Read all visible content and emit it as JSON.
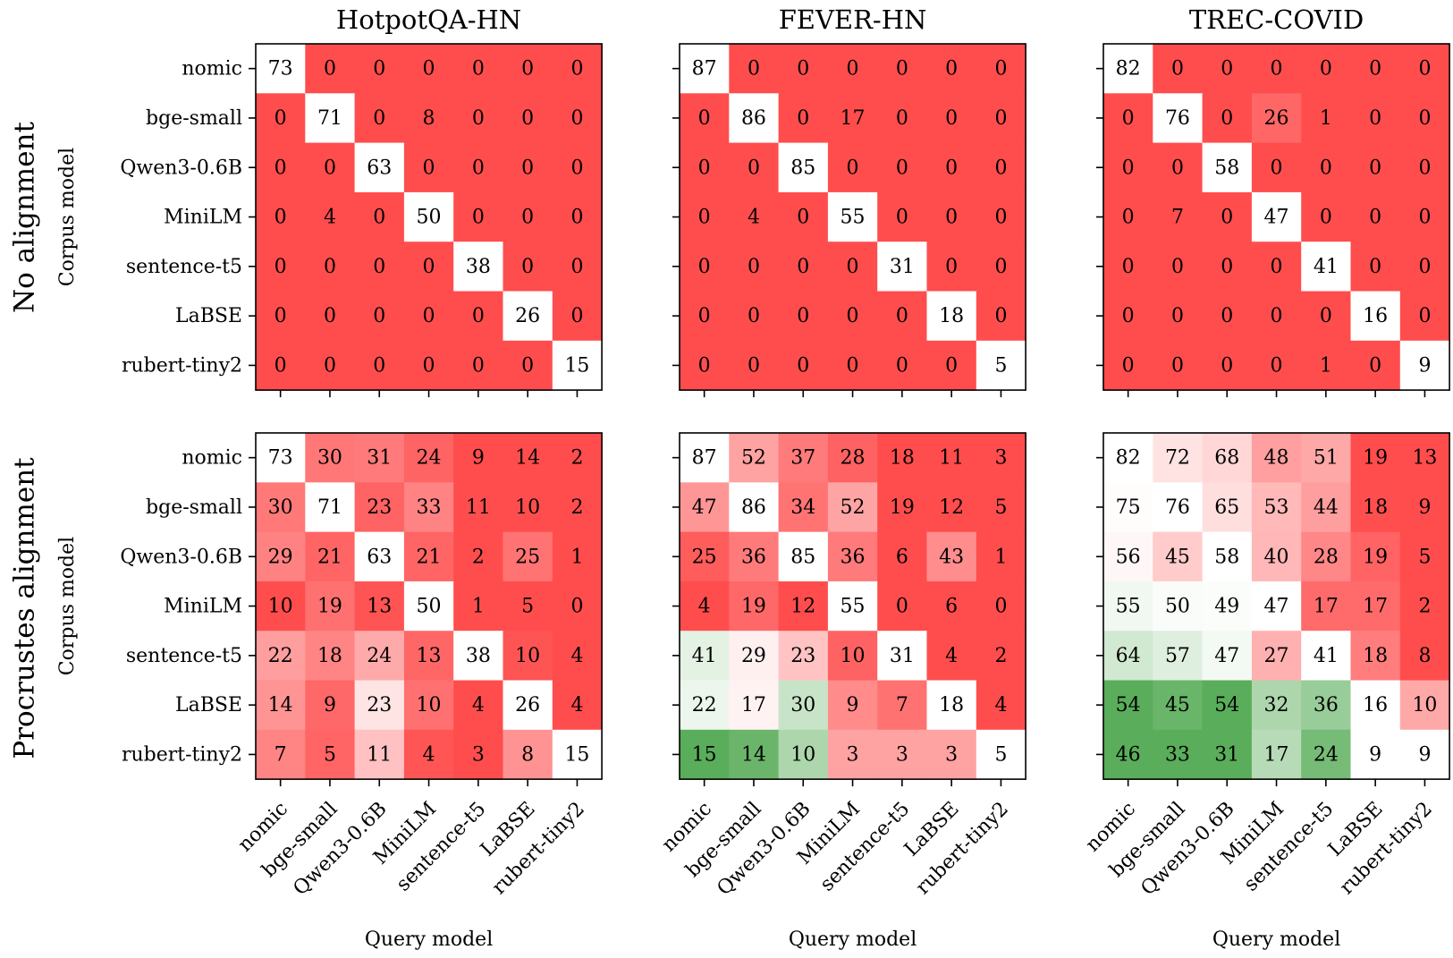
{
  "chart_data": {
    "type": "heatmap",
    "row_titles": [
      "No alignment",
      "Procrustes alignment"
    ],
    "column_titles": [
      "HotpotQA-HN",
      "FEVER-HN",
      "TREC-COVID"
    ],
    "xlabel": "Query model",
    "ylabel": "Corpus model",
    "models": [
      "nomic",
      "bge-small",
      "Qwen3-0.6B",
      "MiniLM",
      "sentence-t5",
      "LaBSE",
      "rubert-tiny2"
    ],
    "colors": {
      "low": "#ff4d4d",
      "neutral": "#ffffff",
      "high": "#5aad5a"
    },
    "panels": [
      {
        "row": 0,
        "col": 0,
        "title": "HotpotQA-HN",
        "matrix": [
          [
            73,
            0,
            0,
            0,
            0,
            0,
            0
          ],
          [
            0,
            71,
            0,
            8,
            0,
            0,
            0
          ],
          [
            0,
            0,
            63,
            0,
            0,
            0,
            0
          ],
          [
            0,
            4,
            0,
            50,
            0,
            0,
            0
          ],
          [
            0,
            0,
            0,
            0,
            38,
            0,
            0
          ],
          [
            0,
            0,
            0,
            0,
            0,
            26,
            0
          ],
          [
            0,
            0,
            0,
            0,
            0,
            0,
            15
          ]
        ]
      },
      {
        "row": 0,
        "col": 1,
        "title": "FEVER-HN",
        "matrix": [
          [
            87,
            0,
            0,
            0,
            0,
            0,
            0
          ],
          [
            0,
            86,
            0,
            17,
            0,
            0,
            0
          ],
          [
            0,
            0,
            85,
            0,
            0,
            0,
            0
          ],
          [
            0,
            4,
            0,
            55,
            0,
            0,
            0
          ],
          [
            0,
            0,
            0,
            0,
            31,
            0,
            0
          ],
          [
            0,
            0,
            0,
            0,
            0,
            18,
            0
          ],
          [
            0,
            0,
            0,
            0,
            0,
            0,
            5
          ]
        ]
      },
      {
        "row": 0,
        "col": 2,
        "title": "TREC-COVID",
        "matrix": [
          [
            82,
            0,
            0,
            0,
            0,
            0,
            0
          ],
          [
            0,
            76,
            0,
            26,
            1,
            0,
            0
          ],
          [
            0,
            0,
            58,
            0,
            0,
            0,
            0
          ],
          [
            0,
            7,
            0,
            47,
            0,
            0,
            0
          ],
          [
            0,
            0,
            0,
            0,
            41,
            0,
            0
          ],
          [
            0,
            0,
            0,
            0,
            0,
            16,
            0
          ],
          [
            0,
            0,
            0,
            0,
            1,
            0,
            9
          ]
        ]
      },
      {
        "row": 1,
        "col": 0,
        "title": "",
        "matrix": [
          [
            73,
            30,
            31,
            24,
            9,
            14,
            2
          ],
          [
            30,
            71,
            23,
            33,
            11,
            10,
            2
          ],
          [
            29,
            21,
            63,
            21,
            2,
            25,
            1
          ],
          [
            10,
            19,
            13,
            50,
            1,
            5,
            0
          ],
          [
            22,
            18,
            24,
            13,
            38,
            10,
            4
          ],
          [
            14,
            9,
            23,
            10,
            4,
            26,
            4
          ],
          [
            7,
            5,
            11,
            4,
            3,
            8,
            15
          ]
        ]
      },
      {
        "row": 1,
        "col": 1,
        "title": "",
        "matrix": [
          [
            87,
            52,
            37,
            28,
            18,
            11,
            3
          ],
          [
            47,
            86,
            34,
            52,
            19,
            12,
            5
          ],
          [
            25,
            36,
            85,
            36,
            6,
            43,
            1
          ],
          [
            4,
            19,
            12,
            55,
            0,
            6,
            0
          ],
          [
            41,
            29,
            23,
            10,
            31,
            4,
            2
          ],
          [
            22,
            17,
            30,
            9,
            7,
            18,
            4
          ],
          [
            15,
            14,
            10,
            3,
            3,
            3,
            5
          ]
        ]
      },
      {
        "row": 1,
        "col": 2,
        "title": "",
        "matrix": [
          [
            82,
            72,
            68,
            48,
            51,
            19,
            13
          ],
          [
            75,
            76,
            65,
            53,
            44,
            18,
            9
          ],
          [
            56,
            45,
            58,
            40,
            28,
            19,
            5
          ],
          [
            55,
            50,
            49,
            47,
            17,
            17,
            2
          ],
          [
            64,
            57,
            47,
            27,
            41,
            18,
            8
          ],
          [
            54,
            45,
            54,
            32,
            36,
            16,
            10
          ],
          [
            46,
            33,
            31,
            17,
            24,
            9,
            9
          ]
        ]
      }
    ]
  }
}
